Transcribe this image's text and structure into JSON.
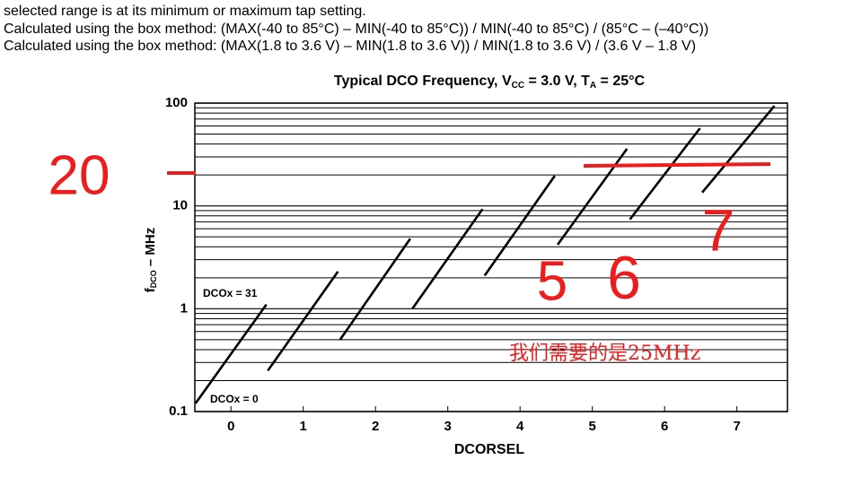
{
  "header": {
    "lines": [
      "selected range is at its minimum or maximum tap setting.",
      "Calculated using the box method: (MAX(-40 to 85°C) – MIN(-40 to 85°C)) / MIN(-40 to 85°C) / (85°C – (–40°C))",
      "Calculated using the box method: (MAX(1.8 to 3.6 V) – MIN(1.8 to 3.6 V)) / MIN(1.8 to 3.6 V) / (3.6 V – 1.8 V)"
    ]
  },
  "chart_data": {
    "type": "line",
    "title": [
      "Typical ",
      "DCO",
      " Frequency, V",
      "CC",
      " = 3.0 V, T",
      "A",
      " = 25°C"
    ],
    "x_label": "DCORSEL",
    "y_label": [
      "f",
      "DCO",
      " – MHz"
    ],
    "y_log": true,
    "xlim": [
      -0.5,
      7.7
    ],
    "xticks": [
      0,
      1,
      2,
      3,
      4,
      5,
      6,
      7
    ],
    "ylim": [
      0.1,
      100
    ],
    "yticks": [
      0.1,
      1,
      10,
      100
    ],
    "y_minor_ticks": [
      0.2,
      0.3,
      0.4,
      0.5,
      0.6,
      0.7,
      0.8,
      0.9,
      2,
      3,
      4,
      5,
      6,
      7,
      8,
      9,
      20,
      30,
      40,
      50,
      60,
      70,
      80,
      90
    ],
    "grid": true,
    "series": [
      {
        "color": "#000000",
        "x": [
          -0.49,
          0.49
        ],
        "values": [
          0.12,
          1.1
        ]
      },
      {
        "color": "#000000",
        "x": [
          0.51,
          1.48
        ],
        "values": [
          0.25,
          2.3
        ]
      },
      {
        "color": "#000000",
        "x": [
          1.51,
          2.48
        ],
        "values": [
          0.5,
          4.8
        ]
      },
      {
        "color": "#000000",
        "x": [
          2.51,
          3.48
        ],
        "values": [
          1.0,
          9.3
        ]
      },
      {
        "color": "#000000",
        "x": [
          3.51,
          4.48
        ],
        "values": [
          2.1,
          19.6
        ]
      },
      {
        "color": "#000000",
        "x": [
          4.52,
          5.48
        ],
        "values": [
          4.2,
          36
        ]
      },
      {
        "color": "#000000",
        "x": [
          5.52,
          6.49
        ],
        "values": [
          7.4,
          57
        ]
      },
      {
        "color": "#000000",
        "x": [
          6.52,
          7.52
        ],
        "values": [
          13.5,
          94
        ]
      }
    ],
    "annotations": [
      "DCOx = 31",
      "DCOx = 0"
    ]
  },
  "handwriting": {
    "color": "#ee1c1c",
    "marks": [
      "20",
      "5",
      "6",
      "7"
    ],
    "note": "我们需要的是25MHz"
  }
}
